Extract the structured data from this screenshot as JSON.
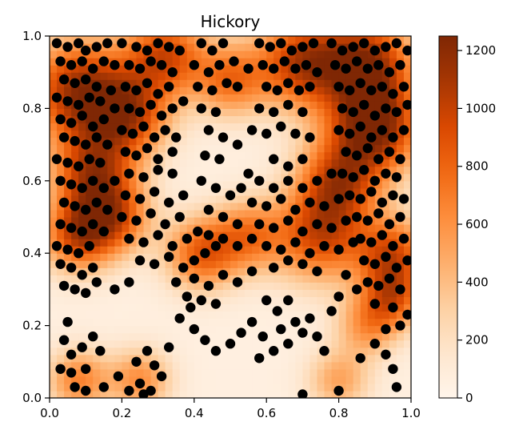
{
  "chart_data": {
    "type": "heatmap",
    "title": "Hickory",
    "xlabel": "",
    "ylabel": "",
    "xlim": [
      0.0,
      1.0
    ],
    "ylim": [
      0.0,
      1.0
    ],
    "x_ticks": [
      "0.0",
      "0.2",
      "0.4",
      "0.6",
      "0.8",
      "1.0"
    ],
    "y_ticks": [
      "0.0",
      "0.2",
      "0.4",
      "0.6",
      "0.8",
      "1.0"
    ],
    "colorbar": {
      "colormap": "Oranges",
      "vmin": 0,
      "vmax": 1250,
      "ticks": [
        "0",
        "200",
        "400",
        "600",
        "800",
        "1000",
        "1200"
      ]
    },
    "grid": false,
    "point_color": "#000000",
    "density_field": {
      "background": 60,
      "hotspots": [
        {
          "x": 0.08,
          "y": 0.85,
          "value": 1050,
          "sigma": 0.1
        },
        {
          "x": 0.12,
          "y": 0.62,
          "value": 900,
          "sigma": 0.08
        },
        {
          "x": 0.08,
          "y": 0.45,
          "value": 850,
          "sigma": 0.07
        },
        {
          "x": 0.22,
          "y": 0.78,
          "value": 800,
          "sigma": 0.08
        },
        {
          "x": 0.32,
          "y": 0.95,
          "value": 850,
          "sigma": 0.08
        },
        {
          "x": 0.5,
          "y": 0.88,
          "value": 650,
          "sigma": 0.07
        },
        {
          "x": 0.7,
          "y": 0.93,
          "value": 950,
          "sigma": 0.09
        },
        {
          "x": 0.88,
          "y": 0.93,
          "value": 1000,
          "sigma": 0.09
        },
        {
          "x": 0.9,
          "y": 0.75,
          "value": 1150,
          "sigma": 0.09
        },
        {
          "x": 0.8,
          "y": 0.6,
          "value": 800,
          "sigma": 0.08
        },
        {
          "x": 0.75,
          "y": 0.45,
          "value": 850,
          "sigma": 0.09
        },
        {
          "x": 0.95,
          "y": 0.4,
          "value": 800,
          "sigma": 0.07
        },
        {
          "x": 0.95,
          "y": 0.28,
          "value": 700,
          "sigma": 0.06
        },
        {
          "x": 0.42,
          "y": 0.4,
          "value": 750,
          "sigma": 0.07
        },
        {
          "x": 0.55,
          "y": 0.45,
          "value": 600,
          "sigma": 0.07
        },
        {
          "x": 0.18,
          "y": 0.5,
          "value": 700,
          "sigma": 0.07
        },
        {
          "x": 0.08,
          "y": 0.05,
          "value": 600,
          "sigma": 0.06
        },
        {
          "x": 0.25,
          "y": 0.05,
          "value": 550,
          "sigma": 0.06
        },
        {
          "x": 0.8,
          "y": 0.05,
          "value": 450,
          "sigma": 0.06
        },
        {
          "x": 0.88,
          "y": 0.2,
          "value": 500,
          "sigma": 0.06
        }
      ]
    },
    "points": [
      [
        0.02,
        0.98
      ],
      [
        0.05,
        0.97
      ],
      [
        0.08,
        0.98
      ],
      [
        0.1,
        0.96
      ],
      [
        0.13,
        0.97
      ],
      [
        0.16,
        0.98
      ],
      [
        0.03,
        0.93
      ],
      [
        0.06,
        0.92
      ],
      [
        0.09,
        0.93
      ],
      [
        0.12,
        0.91
      ],
      [
        0.15,
        0.93
      ],
      [
        0.18,
        0.92
      ],
      [
        0.04,
        0.88
      ],
      [
        0.07,
        0.87
      ],
      [
        0.1,
        0.88
      ],
      [
        0.13,
        0.86
      ],
      [
        0.02,
        0.83
      ],
      [
        0.05,
        0.82
      ],
      [
        0.08,
        0.81
      ],
      [
        0.11,
        0.83
      ],
      [
        0.14,
        0.82
      ],
      [
        0.03,
        0.77
      ],
      [
        0.06,
        0.76
      ],
      [
        0.09,
        0.78
      ],
      [
        0.12,
        0.75
      ],
      [
        0.15,
        0.77
      ],
      [
        0.04,
        0.72
      ],
      [
        0.07,
        0.71
      ],
      [
        0.1,
        0.7
      ],
      [
        0.13,
        0.72
      ],
      [
        0.16,
        0.7
      ],
      [
        0.02,
        0.66
      ],
      [
        0.05,
        0.65
      ],
      [
        0.08,
        0.64
      ],
      [
        0.11,
        0.66
      ],
      [
        0.14,
        0.65
      ],
      [
        0.03,
        0.6
      ],
      [
        0.06,
        0.59
      ],
      [
        0.09,
        0.58
      ],
      [
        0.12,
        0.6
      ],
      [
        0.15,
        0.58
      ],
      [
        0.18,
        0.6
      ],
      [
        0.04,
        0.54
      ],
      [
        0.07,
        0.53
      ],
      [
        0.1,
        0.52
      ],
      [
        0.13,
        0.54
      ],
      [
        0.16,
        0.52
      ],
      [
        0.03,
        0.48
      ],
      [
        0.06,
        0.47
      ],
      [
        0.09,
        0.46
      ],
      [
        0.12,
        0.48
      ],
      [
        0.15,
        0.46
      ],
      [
        0.02,
        0.42
      ],
      [
        0.05,
        0.41
      ],
      [
        0.08,
        0.4
      ],
      [
        0.11,
        0.42
      ],
      [
        0.03,
        0.37
      ],
      [
        0.06,
        0.36
      ],
      [
        0.09,
        0.34
      ],
      [
        0.12,
        0.36
      ],
      [
        0.04,
        0.31
      ],
      [
        0.07,
        0.3
      ],
      [
        0.1,
        0.29
      ],
      [
        0.13,
        0.32
      ],
      [
        0.18,
        0.3
      ],
      [
        0.22,
        0.32
      ],
      [
        0.2,
        0.98
      ],
      [
        0.24,
        0.97
      ],
      [
        0.27,
        0.96
      ],
      [
        0.3,
        0.98
      ],
      [
        0.33,
        0.97
      ],
      [
        0.36,
        0.96
      ],
      [
        0.22,
        0.92
      ],
      [
        0.25,
        0.91
      ],
      [
        0.28,
        0.93
      ],
      [
        0.31,
        0.92
      ],
      [
        0.34,
        0.9
      ],
      [
        0.21,
        0.86
      ],
      [
        0.24,
        0.85
      ],
      [
        0.27,
        0.87
      ],
      [
        0.3,
        0.84
      ],
      [
        0.33,
        0.86
      ],
      [
        0.22,
        0.8
      ],
      [
        0.25,
        0.79
      ],
      [
        0.28,
        0.81
      ],
      [
        0.31,
        0.78
      ],
      [
        0.34,
        0.8
      ],
      [
        0.37,
        0.82
      ],
      [
        0.2,
        0.74
      ],
      [
        0.23,
        0.73
      ],
      [
        0.26,
        0.75
      ],
      [
        0.29,
        0.72
      ],
      [
        0.32,
        0.74
      ],
      [
        0.35,
        0.72
      ],
      [
        0.21,
        0.68
      ],
      [
        0.24,
        0.67
      ],
      [
        0.27,
        0.69
      ],
      [
        0.3,
        0.66
      ],
      [
        0.34,
        0.68
      ],
      [
        0.22,
        0.62
      ],
      [
        0.26,
        0.61
      ],
      [
        0.3,
        0.63
      ],
      [
        0.34,
        0.62
      ],
      [
        0.21,
        0.56
      ],
      [
        0.25,
        0.55
      ],
      [
        0.29,
        0.57
      ],
      [
        0.33,
        0.54
      ],
      [
        0.37,
        0.56
      ],
      [
        0.2,
        0.5
      ],
      [
        0.24,
        0.49
      ],
      [
        0.28,
        0.51
      ],
      [
        0.32,
        0.48
      ],
      [
        0.36,
        0.5
      ],
      [
        0.22,
        0.44
      ],
      [
        0.26,
        0.43
      ],
      [
        0.3,
        0.45
      ],
      [
        0.34,
        0.42
      ],
      [
        0.38,
        0.44
      ],
      [
        0.41,
        0.46
      ],
      [
        0.25,
        0.38
      ],
      [
        0.29,
        0.37
      ],
      [
        0.33,
        0.39
      ],
      [
        0.37,
        0.36
      ],
      [
        0.4,
        0.38
      ],
      [
        0.43,
        0.4
      ],
      [
        0.46,
        0.42
      ],
      [
        0.42,
        0.98
      ],
      [
        0.45,
        0.96
      ],
      [
        0.48,
        0.98
      ],
      [
        0.4,
        0.92
      ],
      [
        0.44,
        0.9
      ],
      [
        0.47,
        0.92
      ],
      [
        0.41,
        0.86
      ],
      [
        0.45,
        0.85
      ],
      [
        0.49,
        0.87
      ],
      [
        0.42,
        0.8
      ],
      [
        0.46,
        0.79
      ],
      [
        0.44,
        0.74
      ],
      [
        0.48,
        0.72
      ],
      [
        0.43,
        0.67
      ],
      [
        0.47,
        0.66
      ],
      [
        0.42,
        0.6
      ],
      [
        0.46,
        0.58
      ],
      [
        0.5,
        0.56
      ],
      [
        0.44,
        0.52
      ],
      [
        0.48,
        0.5
      ],
      [
        0.52,
        0.48
      ],
      [
        0.44,
        0.45
      ],
      [
        0.48,
        0.44
      ],
      [
        0.52,
        0.42
      ],
      [
        0.56,
        0.44
      ],
      [
        0.4,
        0.33
      ],
      [
        0.44,
        0.31
      ],
      [
        0.48,
        0.34
      ],
      [
        0.52,
        0.32
      ],
      [
        0.56,
        0.35
      ],
      [
        0.42,
        0.27
      ],
      [
        0.46,
        0.26
      ],
      [
        0.38,
        0.28
      ],
      [
        0.35,
        0.32
      ],
      [
        0.58,
        0.98
      ],
      [
        0.61,
        0.97
      ],
      [
        0.64,
        0.98
      ],
      [
        0.67,
        0.96
      ],
      [
        0.7,
        0.97
      ],
      [
        0.73,
        0.98
      ],
      [
        0.59,
        0.92
      ],
      [
        0.62,
        0.91
      ],
      [
        0.65,
        0.93
      ],
      [
        0.68,
        0.91
      ],
      [
        0.71,
        0.92
      ],
      [
        0.74,
        0.9
      ],
      [
        0.6,
        0.86
      ],
      [
        0.63,
        0.85
      ],
      [
        0.66,
        0.87
      ],
      [
        0.69,
        0.85
      ],
      [
        0.72,
        0.86
      ],
      [
        0.58,
        0.8
      ],
      [
        0.62,
        0.79
      ],
      [
        0.66,
        0.81
      ],
      [
        0.7,
        0.79
      ],
      [
        0.56,
        0.74
      ],
      [
        0.6,
        0.73
      ],
      [
        0.64,
        0.75
      ],
      [
        0.68,
        0.73
      ],
      [
        0.72,
        0.72
      ],
      [
        0.62,
        0.66
      ],
      [
        0.66,
        0.64
      ],
      [
        0.7,
        0.66
      ],
      [
        0.58,
        0.6
      ],
      [
        0.62,
        0.58
      ],
      [
        0.66,
        0.6
      ],
      [
        0.7,
        0.58
      ],
      [
        0.74,
        0.6
      ],
      [
        0.78,
        0.62
      ],
      [
        0.56,
        0.54
      ],
      [
        0.6,
        0.53
      ],
      [
        0.64,
        0.55
      ],
      [
        0.68,
        0.52
      ],
      [
        0.72,
        0.54
      ],
      [
        0.76,
        0.53
      ],
      [
        0.8,
        0.55
      ],
      [
        0.58,
        0.48
      ],
      [
        0.62,
        0.47
      ],
      [
        0.66,
        0.49
      ],
      [
        0.7,
        0.46
      ],
      [
        0.74,
        0.48
      ],
      [
        0.78,
        0.47
      ],
      [
        0.82,
        0.49
      ],
      [
        0.6,
        0.42
      ],
      [
        0.64,
        0.41
      ],
      [
        0.68,
        0.43
      ],
      [
        0.72,
        0.4
      ],
      [
        0.76,
        0.42
      ],
      [
        0.8,
        0.41
      ],
      [
        0.84,
        0.43
      ],
      [
        0.62,
        0.36
      ],
      [
        0.66,
        0.38
      ],
      [
        0.7,
        0.37
      ],
      [
        0.74,
        0.35
      ],
      [
        0.78,
        0.98
      ],
      [
        0.81,
        0.96
      ],
      [
        0.84,
        0.97
      ],
      [
        0.87,
        0.98
      ],
      [
        0.9,
        0.96
      ],
      [
        0.93,
        0.97
      ],
      [
        0.96,
        0.98
      ],
      [
        0.99,
        0.96
      ],
      [
        0.79,
        0.92
      ],
      [
        0.82,
        0.91
      ],
      [
        0.85,
        0.93
      ],
      [
        0.88,
        0.91
      ],
      [
        0.91,
        0.92
      ],
      [
        0.94,
        0.9
      ],
      [
        0.97,
        0.92
      ],
      [
        0.8,
        0.86
      ],
      [
        0.83,
        0.85
      ],
      [
        0.86,
        0.87
      ],
      [
        0.89,
        0.85
      ],
      [
        0.92,
        0.86
      ],
      [
        0.95,
        0.84
      ],
      [
        0.98,
        0.86
      ],
      [
        0.81,
        0.8
      ],
      [
        0.84,
        0.79
      ],
      [
        0.87,
        0.81
      ],
      [
        0.9,
        0.78
      ],
      [
        0.93,
        0.8
      ],
      [
        0.96,
        0.79
      ],
      [
        0.99,
        0.81
      ],
      [
        0.8,
        0.74
      ],
      [
        0.83,
        0.73
      ],
      [
        0.86,
        0.75
      ],
      [
        0.89,
        0.72
      ],
      [
        0.92,
        0.74
      ],
      [
        0.95,
        0.72
      ],
      [
        0.98,
        0.74
      ],
      [
        0.82,
        0.68
      ],
      [
        0.85,
        0.67
      ],
      [
        0.88,
        0.69
      ],
      [
        0.91,
        0.66
      ],
      [
        0.94,
        0.68
      ],
      [
        0.97,
        0.66
      ],
      [
        0.81,
        0.62
      ],
      [
        0.84,
        0.61
      ],
      [
        0.87,
        0.63
      ],
      [
        0.9,
        0.6
      ],
      [
        0.93,
        0.62
      ],
      [
        0.96,
        0.61
      ],
      [
        0.83,
        0.56
      ],
      [
        0.86,
        0.55
      ],
      [
        0.89,
        0.57
      ],
      [
        0.92,
        0.54
      ],
      [
        0.95,
        0.56
      ],
      [
        0.98,
        0.55
      ],
      [
        0.85,
        0.5
      ],
      [
        0.88,
        0.49
      ],
      [
        0.91,
        0.51
      ],
      [
        0.94,
        0.48
      ],
      [
        0.97,
        0.5
      ],
      [
        0.86,
        0.44
      ],
      [
        0.89,
        0.43
      ],
      [
        0.92,
        0.45
      ],
      [
        0.95,
        0.42
      ],
      [
        0.98,
        0.44
      ],
      [
        0.87,
        0.38
      ],
      [
        0.9,
        0.37
      ],
      [
        0.93,
        0.39
      ],
      [
        0.96,
        0.36
      ],
      [
        0.99,
        0.38
      ],
      [
        0.88,
        0.32
      ],
      [
        0.91,
        0.31
      ],
      [
        0.94,
        0.33
      ],
      [
        0.97,
        0.3
      ],
      [
        0.82,
        0.34
      ],
      [
        0.85,
        0.3
      ],
      [
        0.9,
        0.26
      ],
      [
        0.95,
        0.25
      ],
      [
        0.99,
        0.23
      ],
      [
        0.97,
        0.2
      ],
      [
        0.93,
        0.19
      ],
      [
        0.8,
        0.28
      ],
      [
        0.78,
        0.24
      ],
      [
        0.05,
        0.21
      ],
      [
        0.04,
        0.16
      ],
      [
        0.06,
        0.12
      ],
      [
        0.09,
        0.14
      ],
      [
        0.12,
        0.17
      ],
      [
        0.14,
        0.13
      ],
      [
        0.03,
        0.08
      ],
      [
        0.06,
        0.07
      ],
      [
        0.1,
        0.08
      ],
      [
        0.07,
        0.03
      ],
      [
        0.1,
        0.02
      ],
      [
        0.15,
        0.03
      ],
      [
        0.19,
        0.06
      ],
      [
        0.22,
        0.02
      ],
      [
        0.25,
        0.04
      ],
      [
        0.28,
        0.02
      ],
      [
        0.24,
        0.1
      ],
      [
        0.27,
        0.13
      ],
      [
        0.29,
        0.09
      ],
      [
        0.33,
        0.14
      ],
      [
        0.31,
        0.06
      ],
      [
        0.26,
        0.01
      ],
      [
        0.4,
        0.19
      ],
      [
        0.43,
        0.16
      ],
      [
        0.46,
        0.13
      ],
      [
        0.5,
        0.15
      ],
      [
        0.53,
        0.18
      ],
      [
        0.56,
        0.21
      ],
      [
        0.59,
        0.17
      ],
      [
        0.62,
        0.13
      ],
      [
        0.64,
        0.19
      ],
      [
        0.66,
        0.15
      ],
      [
        0.68,
        0.21
      ],
      [
        0.7,
        0.18
      ],
      [
        0.72,
        0.22
      ],
      [
        0.74,
        0.17
      ],
      [
        0.76,
        0.13
      ],
      [
        0.6,
        0.27
      ],
      [
        0.63,
        0.24
      ],
      [
        0.66,
        0.27
      ],
      [
        0.58,
        0.11
      ],
      [
        0.7,
        0.01
      ],
      [
        0.8,
        0.02
      ],
      [
        0.86,
        0.11
      ],
      [
        0.9,
        0.15
      ],
      [
        0.93,
        0.12
      ],
      [
        0.95,
        0.08
      ],
      [
        0.96,
        0.03
      ],
      [
        0.36,
        0.22
      ],
      [
        0.39,
        0.25
      ],
      [
        0.52,
        0.7
      ],
      [
        0.52,
        0.86
      ],
      [
        0.55,
        0.91
      ],
      [
        0.51,
        0.93
      ],
      [
        0.55,
        0.62
      ],
      [
        0.53,
        0.58
      ],
      [
        0.17,
        0.85
      ],
      [
        0.18,
        0.8
      ]
    ]
  }
}
